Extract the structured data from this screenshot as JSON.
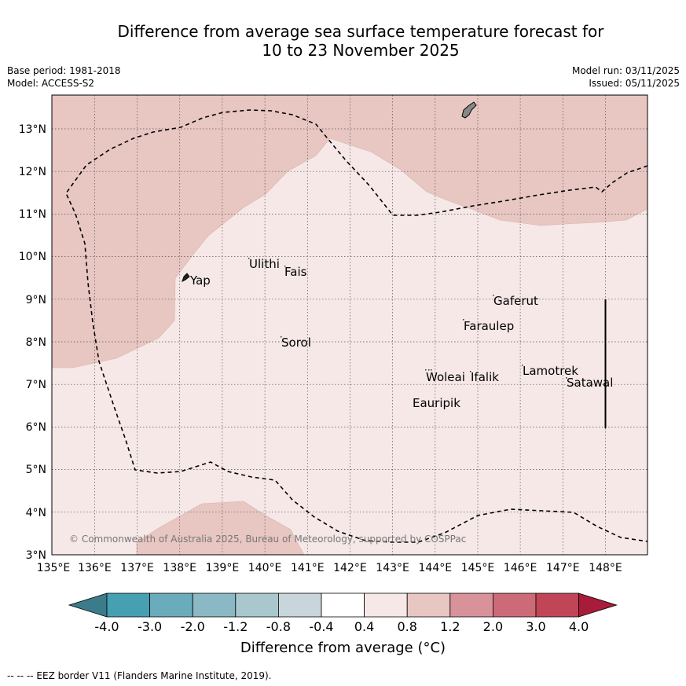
{
  "title": {
    "line1": "Difference from average sea surface temperature forecast for",
    "line2": "10 to 23 November 2025"
  },
  "meta": {
    "base_period": "Base period: 1981-2018",
    "model": "Model: ACCESS-S2",
    "model_run": "Model run: 03/11/2025",
    "issued": "Issued: 05/11/2025"
  },
  "map": {
    "copyright": "© Commonwealth of Australia 2025, Bureau of Meteorology, supported by COSPPac",
    "lon_labels": [
      "135°E",
      "136°E",
      "137°E",
      "138°E",
      "139°E",
      "140°E",
      "141°E",
      "142°E",
      "143°E",
      "144°E",
      "145°E",
      "146°E",
      "147°E",
      "148°E"
    ],
    "lat_labels": [
      "13°N",
      "12°N",
      "11°N",
      "10°N",
      "9°N",
      "8°N",
      "7°N",
      "6°N",
      "5°N",
      "4°N",
      "3°N"
    ],
    "places": [
      {
        "name": "Yap"
      },
      {
        "name": "Ulithi"
      },
      {
        "name": "Fais"
      },
      {
        "name": "Gaferut"
      },
      {
        "name": "Faraulep"
      },
      {
        "name": "Sorol"
      },
      {
        "name": "Lamotrek"
      },
      {
        "name": "Woleai"
      },
      {
        "name": "Ifalik"
      },
      {
        "name": "Satawal"
      },
      {
        "name": "Eauripik"
      }
    ],
    "colors": {
      "anomaly_0_4_0_8": "#f5e8e7",
      "anomaly_0_8_1_2": "#e8c6c2"
    }
  },
  "colorbar": {
    "title": "Difference from average (°C)",
    "ticks": [
      "-4.0",
      "-3.0",
      "-2.0",
      "-1.2",
      "-0.8",
      "-0.4",
      "0.4",
      "0.8",
      "1.2",
      "2.0",
      "3.0",
      "4.0"
    ],
    "colors": [
      "#3c7c8a",
      "#45a0b2",
      "#6aacbb",
      "#8ab8c4",
      "#a9c8ce",
      "#c8d6db",
      "#ffffff",
      "#f5e8e7",
      "#e8c6c2",
      "#d8929a",
      "#cc6b77",
      "#c04556",
      "#a81b3b"
    ]
  },
  "footer": "--  --  -- EEZ border V11 (Flanders Marine Institute, 2019)."
}
